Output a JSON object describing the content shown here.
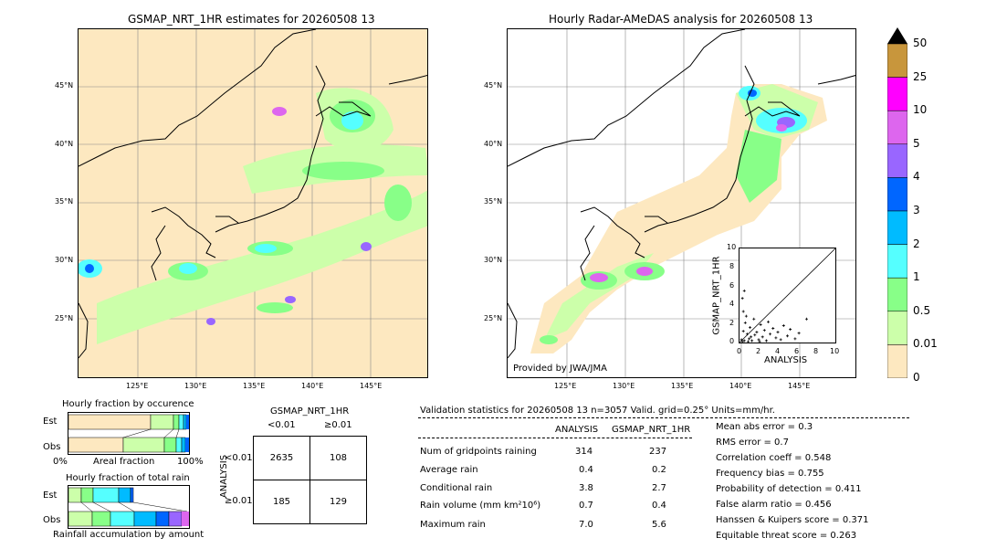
{
  "left_map": {
    "title": "GSMAP_NRT_1HR estimates for 20260508 13",
    "lat_labels": [
      "45°N",
      "40°N",
      "35°N",
      "30°N",
      "25°N"
    ],
    "lon_labels": [
      "125°E",
      "130°E",
      "135°E",
      "140°E",
      "145°E"
    ]
  },
  "right_map": {
    "title": "Hourly Radar-AMeDAS analysis for 20260508 13",
    "lat_labels": [
      "45°N",
      "40°N",
      "35°N",
      "30°N",
      "25°N"
    ],
    "lon_labels": [
      "125°E",
      "130°E",
      "135°E",
      "140°E",
      "145°E"
    ],
    "credit": "Provided by JWA/JMA"
  },
  "colorbar": {
    "labels": [
      "50",
      "25",
      "10",
      "5",
      "4",
      "3",
      "2",
      "1",
      "0.5",
      "0.01",
      "0"
    ],
    "colors": [
      "#c8963c",
      "#ff00ff",
      "#dd66ee",
      "#9966ff",
      "#0066ff",
      "#00bbff",
      "#55ffff",
      "#88ff88",
      "#ccffaa",
      "#fde8c0"
    ]
  },
  "scatter": {
    "xlabel": "ANALYSIS",
    "ylabel": "GSMAP_NRT_1HR",
    "ticks": [
      "0",
      "2",
      "4",
      "6",
      "8",
      "10"
    ]
  },
  "fraction_occurrence": {
    "title": "Hourly fraction by occurence",
    "rows": [
      "Est",
      "Obs"
    ],
    "axis_left": "0%",
    "axis_mid": "Areal fraction",
    "axis_right": "100%"
  },
  "fraction_total": {
    "title": "Hourly fraction of total rain",
    "rows": [
      "Est",
      "Obs"
    ],
    "footer": "Rainfall accumulation by amount"
  },
  "contingency": {
    "title": "GSMAP_NRT_1HR",
    "col_lt": "<0.01",
    "col_ge": "≥0.01",
    "row_axis": "ANALYSIS",
    "row_lt": "<0.01",
    "row_ge": "≥0.01",
    "a": "2635",
    "b": "108",
    "c": "185",
    "d": "129"
  },
  "validation": {
    "header": "Validation statistics for 20260508 13  n=3057 Valid. grid=0.25° Units=mm/hr.",
    "col_analysis": "ANALYSIS",
    "col_gsmap": "GSMAP_NRT_1HR",
    "rows": [
      {
        "label": "Num of gridpoints raining",
        "analysis": "314",
        "gsmap": "237"
      },
      {
        "label": "Average rain",
        "analysis": "0.4",
        "gsmap": "0.2"
      },
      {
        "label": "Conditional rain",
        "analysis": "3.8",
        "gsmap": "2.7"
      },
      {
        "label": "Rain volume (mm km²10⁶)",
        "analysis": "0.7",
        "gsmap": "0.4"
      },
      {
        "label": "Maximum rain",
        "analysis": "7.0",
        "gsmap": "5.6"
      }
    ],
    "scores": [
      "Mean abs error =    0.3",
      "RMS error =    0.7",
      "Correlation coeff =  0.548",
      "Frequency bias =  0.755",
      "Probability of detection =  0.411",
      "False alarm ratio =  0.456",
      "Hanssen & Kuipers score =  0.371",
      "Equitable threat score =  0.263"
    ]
  },
  "chart_data": {
    "type": "scatter",
    "xlabel": "ANALYSIS",
    "ylabel": "GSMAP_NRT_1HR",
    "xlim": [
      0,
      10
    ],
    "ylim": [
      0,
      10
    ],
    "series": [
      {
        "values": [
          [
            0.2,
            0.3
          ],
          [
            0.4,
            1.2
          ],
          [
            0.5,
            0.2
          ],
          [
            0.6,
            2.1
          ],
          [
            0.8,
            0.9
          ],
          [
            1.0,
            0.4
          ],
          [
            1.1,
            1.6
          ],
          [
            1.3,
            0.2
          ],
          [
            1.5,
            2.5
          ],
          [
            1.6,
            0.8
          ],
          [
            1.8,
            1.1
          ],
          [
            2.0,
            0.3
          ],
          [
            2.2,
            1.9
          ],
          [
            2.4,
            0.6
          ],
          [
            2.6,
            1.3
          ],
          [
            2.8,
            0.2
          ],
          [
            3.0,
            2.2
          ],
          [
            3.2,
            0.9
          ],
          [
            3.5,
            1.5
          ],
          [
            3.8,
            0.5
          ],
          [
            4.0,
            1.1
          ],
          [
            4.3,
            0.3
          ],
          [
            4.6,
            1.8
          ],
          [
            5.0,
            0.7
          ],
          [
            5.3,
            1.4
          ],
          [
            5.8,
            0.4
          ],
          [
            6.2,
            1.0
          ],
          [
            7.0,
            2.5
          ],
          [
            0.3,
            4.7
          ],
          [
            0.5,
            5.5
          ],
          [
            0.4,
            3.3
          ],
          [
            0.7,
            2.8
          ],
          [
            0.3,
            0.1
          ],
          [
            0.9,
            0.1
          ],
          [
            1.2,
            0.6
          ],
          [
            2.1,
            0.1
          ]
        ]
      }
    ]
  }
}
